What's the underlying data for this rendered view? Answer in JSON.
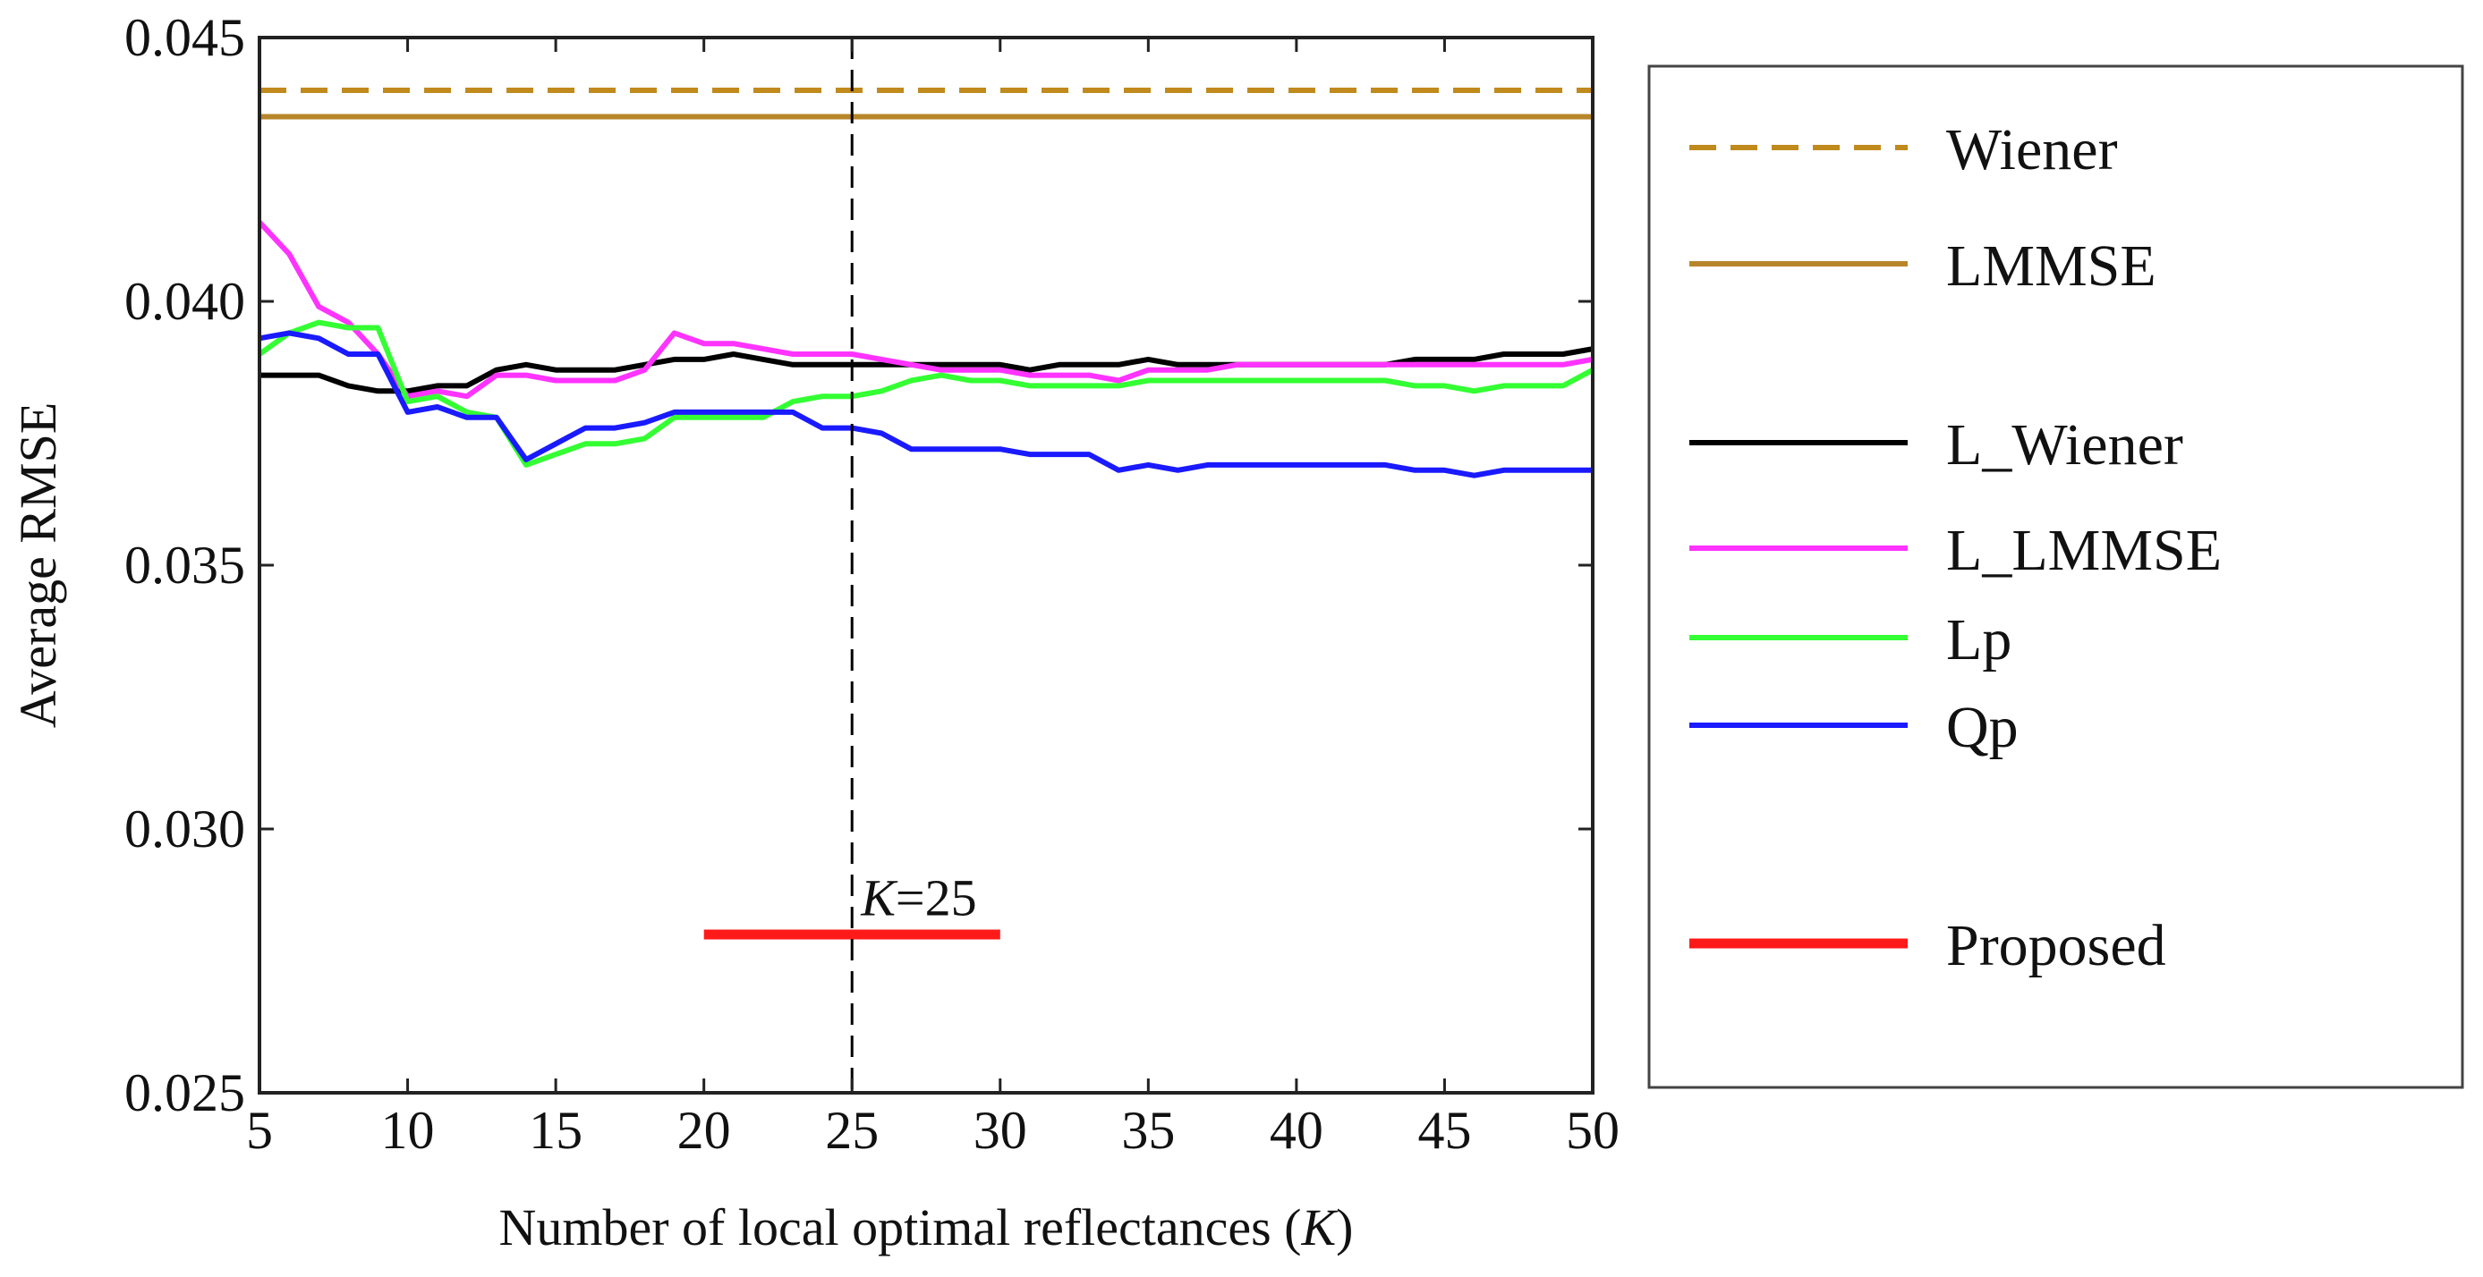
{
  "chart_data": {
    "type": "line",
    "xlabel": "Number of local optimal reflectances (",
    "xlabel_var": "K",
    "xlabel_close": ")",
    "ylabel": "Average RMSE",
    "xlim": [
      5,
      50
    ],
    "ylim": [
      0.025,
      0.045
    ],
    "x_ticks": [
      5,
      10,
      15,
      20,
      25,
      30,
      35,
      40,
      45,
      50
    ],
    "x_tick_labels": [
      "5",
      "10",
      "15",
      "20",
      "25",
      "30",
      "35",
      "40",
      "45",
      "50"
    ],
    "y_ticks": [
      0.025,
      0.03,
      0.035,
      0.04,
      0.045
    ],
    "y_tick_labels": [
      "0.025",
      "0.030",
      "0.035",
      "0.040",
      "0.045"
    ],
    "grid": false,
    "legend_position": "right",
    "x": [
      5,
      6,
      7,
      8,
      9,
      10,
      11,
      12,
      13,
      14,
      15,
      16,
      17,
      18,
      19,
      20,
      21,
      22,
      23,
      24,
      25,
      26,
      27,
      28,
      29,
      30,
      31,
      32,
      33,
      34,
      35,
      36,
      37,
      38,
      39,
      40,
      41,
      42,
      43,
      44,
      45,
      46,
      47,
      48,
      49,
      50
    ],
    "series": [
      {
        "name": "Wiener",
        "color": "#C08A1C",
        "style": "dashed",
        "values": [
          0.044,
          0.044,
          0.044,
          0.044,
          0.044,
          0.044,
          0.044,
          0.044,
          0.044,
          0.044,
          0.044,
          0.044,
          0.044,
          0.044,
          0.044,
          0.044,
          0.044,
          0.044,
          0.044,
          0.044,
          0.044,
          0.044,
          0.044,
          0.044,
          0.044,
          0.044,
          0.044,
          0.044,
          0.044,
          0.044,
          0.044,
          0.044,
          0.044,
          0.044,
          0.044,
          0.044,
          0.044,
          0.044,
          0.044,
          0.044,
          0.044,
          0.044,
          0.044,
          0.044,
          0.044,
          0.044
        ]
      },
      {
        "name": "LMMSE",
        "color": "#B8862A",
        "style": "solid",
        "values": [
          0.0435,
          0.0435,
          0.0435,
          0.0435,
          0.0435,
          0.0435,
          0.0435,
          0.0435,
          0.0435,
          0.0435,
          0.0435,
          0.0435,
          0.0435,
          0.0435,
          0.0435,
          0.0435,
          0.0435,
          0.0435,
          0.0435,
          0.0435,
          0.0435,
          0.0435,
          0.0435,
          0.0435,
          0.0435,
          0.0435,
          0.0435,
          0.0435,
          0.0435,
          0.0435,
          0.0435,
          0.0435,
          0.0435,
          0.0435,
          0.0435,
          0.0435,
          0.0435,
          0.0435,
          0.0435,
          0.0435,
          0.0435,
          0.0435,
          0.0435,
          0.0435,
          0.0435,
          0.0435
        ]
      },
      {
        "name": "L_Wiener",
        "color": "#000000",
        "style": "solid",
        "values": [
          0.0386,
          0.0386,
          0.0386,
          0.0384,
          0.0383,
          0.0383,
          0.0384,
          0.0384,
          0.0387,
          0.0388,
          0.0387,
          0.0387,
          0.0387,
          0.0388,
          0.0389,
          0.0389,
          0.039,
          0.0389,
          0.0388,
          0.0388,
          0.0388,
          0.0388,
          0.0388,
          0.0388,
          0.0388,
          0.0388,
          0.0387,
          0.0388,
          0.0388,
          0.0388,
          0.0389,
          0.0388,
          0.0388,
          0.0388,
          0.0388,
          0.0388,
          0.0388,
          0.0388,
          0.0388,
          0.0389,
          0.0389,
          0.0389,
          0.039,
          0.039,
          0.039,
          0.0391
        ]
      },
      {
        "name": "L_LMMSE",
        "color": "#FF33FF",
        "style": "solid",
        "values": [
          0.0415,
          0.0409,
          0.0399,
          0.0396,
          0.039,
          0.0382,
          0.0383,
          0.0382,
          0.0386,
          0.0386,
          0.0385,
          0.0385,
          0.0385,
          0.0387,
          0.0394,
          0.0392,
          0.0392,
          0.0391,
          0.039,
          0.039,
          0.039,
          0.0389,
          0.0388,
          0.0387,
          0.0387,
          0.0387,
          0.0386,
          0.0386,
          0.0386,
          0.0385,
          0.0387,
          0.0387,
          0.0387,
          0.0388,
          0.0388,
          0.0388,
          0.0388,
          0.0388,
          0.0388,
          0.0388,
          0.0388,
          0.0388,
          0.0388,
          0.0388,
          0.0388,
          0.0389
        ]
      },
      {
        "name": "Lp",
        "color": "#33FF33",
        "style": "solid",
        "values": [
          0.039,
          0.0394,
          0.0396,
          0.0395,
          0.0395,
          0.0381,
          0.0382,
          0.0379,
          0.0378,
          0.0369,
          0.0371,
          0.0373,
          0.0373,
          0.0374,
          0.0378,
          0.0378,
          0.0378,
          0.0378,
          0.0381,
          0.0382,
          0.0382,
          0.0383,
          0.0385,
          0.0386,
          0.0385,
          0.0385,
          0.0384,
          0.0384,
          0.0384,
          0.0384,
          0.0385,
          0.0385,
          0.0385,
          0.0385,
          0.0385,
          0.0385,
          0.0385,
          0.0385,
          0.0385,
          0.0384,
          0.0384,
          0.0383,
          0.0384,
          0.0384,
          0.0384,
          0.0387
        ]
      },
      {
        "name": "Qp",
        "color": "#1A1AFF",
        "style": "solid",
        "values": [
          0.0393,
          0.0394,
          0.0393,
          0.039,
          0.039,
          0.0379,
          0.038,
          0.0378,
          0.0378,
          0.037,
          0.0373,
          0.0376,
          0.0376,
          0.0377,
          0.0379,
          0.0379,
          0.0379,
          0.0379,
          0.0379,
          0.0376,
          0.0376,
          0.0375,
          0.0372,
          0.0372,
          0.0372,
          0.0372,
          0.0371,
          0.0371,
          0.0371,
          0.0368,
          0.0369,
          0.0368,
          0.0369,
          0.0369,
          0.0369,
          0.0369,
          0.0369,
          0.0369,
          0.0369,
          0.0368,
          0.0368,
          0.0367,
          0.0368,
          0.0368,
          0.0368,
          0.0368
        ]
      },
      {
        "name": "Proposed",
        "color": "#FF1A1A",
        "style": "solid-thick",
        "x": [
          20,
          30
        ],
        "values": [
          0.028,
          0.028
        ]
      }
    ],
    "annotations": [
      {
        "kind": "vline",
        "x": 25,
        "style": "dashed",
        "color": "#000000"
      },
      {
        "kind": "text",
        "var": "K",
        "text": "=25",
        "x": 25,
        "y": 0.0287
      }
    ]
  }
}
